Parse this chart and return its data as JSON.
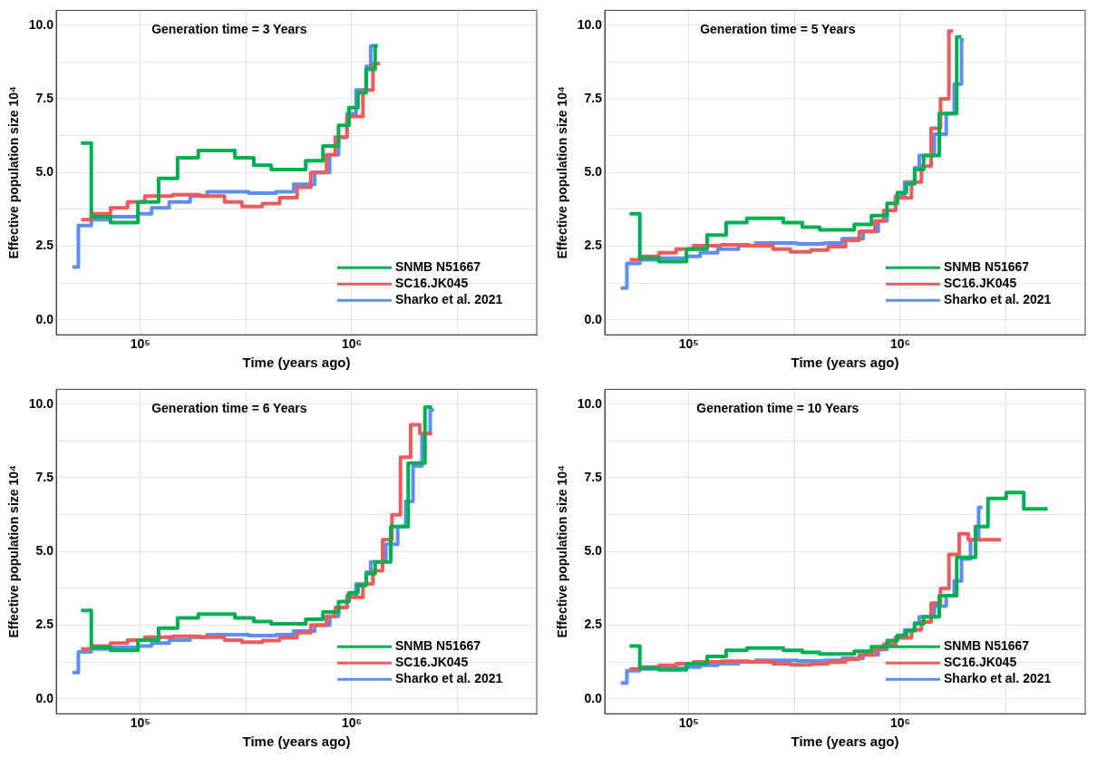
{
  "chart_data": [
    {
      "type": "step",
      "title": "Generation time = 3 Years",
      "xlabel": "Time (years ago)",
      "ylabel": "Effective population size 10⁴",
      "log": "x",
      "grid": true,
      "legend": "bottom right",
      "marker": "none",
      "xlim": [
        40000,
        7500000
      ],
      "ylim": [
        -0.5,
        10.5
      ],
      "xticks": [
        {
          "value": 100000,
          "label": "10⁵"
        },
        {
          "value": 316228,
          "label": null
        },
        {
          "value": 1000000,
          "label": "10⁶"
        },
        {
          "value": 3162278,
          "label": null
        }
      ],
      "yticks": [
        {
          "value": 0,
          "label": "0.0"
        },
        {
          "value": 1.25,
          "label": null
        },
        {
          "value": 2.5,
          "label": "2.5"
        },
        {
          "value": 3.75,
          "label": null
        },
        {
          "value": 5,
          "label": "5.0"
        },
        {
          "value": 6.25,
          "label": null
        },
        {
          "value": 7.5,
          "label": "7.5"
        },
        {
          "value": 8.75,
          "label": null
        },
        {
          "value": 10,
          "label": "10.0"
        }
      ],
      "series": [
        {
          "name": "SNMB N51667",
          "color": "#00b050",
          "x": [
            52400,
            58600,
            72200,
            97400,
            122000,
            150000,
            188000,
            280000,
            344000,
            416000,
            606000,
            731000,
            866000,
            970000,
            1070000,
            1170000,
            1290000,
            1330000
          ],
          "values": [
            6.0,
            3.5,
            3.3,
            4.0,
            4.8,
            5.5,
            5.75,
            5.5,
            5.25,
            5.1,
            5.4,
            5.9,
            6.6,
            7.2,
            7.7,
            8.5,
            9.3,
            9.3
          ]
        },
        {
          "name": "SC16.JK045",
          "color": "#f05a5a",
          "x": [
            52400,
            58600,
            72200,
            87000,
            105000,
            142000,
            192000,
            250000,
            302000,
            378000,
            456000,
            551000,
            640000,
            760000,
            835000,
            950000,
            1130000,
            1260000,
            1360000
          ],
          "values": [
            3.4,
            3.6,
            3.8,
            4.0,
            4.2,
            4.25,
            4.2,
            4.0,
            3.85,
            3.95,
            4.15,
            4.5,
            5.0,
            5.6,
            6.2,
            6.9,
            7.8,
            8.7,
            8.7
          ]
        },
        {
          "name": "Sharko et al. 2021",
          "color": "#5b8ff0",
          "x": [
            47600,
            50900,
            58600,
            72200,
            97400,
            113000,
            137000,
            172000,
            207000,
            259000,
            325000,
            438000,
            531000,
            668000,
            787000,
            866000,
            950000,
            1048000,
            1170000,
            1230000,
            1290000
          ],
          "values": [
            1.8,
            3.2,
            3.4,
            3.5,
            3.6,
            3.8,
            4.0,
            4.2,
            4.35,
            4.35,
            4.3,
            4.35,
            4.6,
            5.0,
            5.6,
            6.2,
            7.0,
            7.8,
            8.6,
            9.3,
            9.3
          ]
        }
      ]
    },
    {
      "type": "step",
      "title": "Generation time = 5 Years",
      "xlabel": "Time (years ago)",
      "ylabel": "Effective population size 10⁴",
      "log": "x",
      "grid": true,
      "legend": "bottom right",
      "marker": "none",
      "xlim": [
        40000,
        7500000
      ],
      "ylim": [
        -0.5,
        10.5
      ],
      "xticks": [
        {
          "value": 100000,
          "label": "10⁵"
        },
        {
          "value": 316228,
          "label": null
        },
        {
          "value": 1000000,
          "label": "10⁶"
        },
        {
          "value": 3162278,
          "label": null
        }
      ],
      "yticks": [
        {
          "value": 0,
          "label": "0.0"
        },
        {
          "value": 1.25,
          "label": null
        },
        {
          "value": 2.5,
          "label": "2.5"
        },
        {
          "value": 3.75,
          "label": null
        },
        {
          "value": 5,
          "label": "5.0"
        },
        {
          "value": 6.25,
          "label": null
        },
        {
          "value": 7.5,
          "label": "7.5"
        },
        {
          "value": 8.75,
          "label": null
        },
        {
          "value": 10,
          "label": "10.0"
        }
      ],
      "series": [
        {
          "name": "SNMB N51667",
          "color": "#00b050",
          "x": [
            52400,
            58600,
            72200,
            97400,
            122000,
            150000,
            188000,
            280000,
            344000,
            416000,
            606000,
            731000,
            866000,
            970000,
            1070000,
            1170000,
            1290000,
            1530000,
            1850000,
            1950000
          ],
          "values": [
            3.6,
            2.1,
            1.98,
            2.4,
            2.88,
            3.3,
            3.45,
            3.3,
            3.15,
            3.06,
            3.24,
            3.54,
            3.96,
            4.32,
            4.62,
            5.1,
            5.58,
            7.0,
            9.6,
            9.6
          ]
        },
        {
          "name": "SC16.JK045",
          "color": "#f05a5a",
          "x": [
            52400,
            58600,
            72200,
            87000,
            105000,
            142000,
            192000,
            250000,
            302000,
            378000,
            456000,
            551000,
            640000,
            760000,
            835000,
            950000,
            1130000,
            1260000,
            1400000,
            1550000,
            1700000,
            1780000
          ],
          "values": [
            2.04,
            2.16,
            2.28,
            2.4,
            2.52,
            2.55,
            2.52,
            2.4,
            2.31,
            2.37,
            2.49,
            2.7,
            3.0,
            3.36,
            3.72,
            4.14,
            4.68,
            5.22,
            6.5,
            7.5,
            9.8,
            9.8
          ]
        },
        {
          "name": "Sharko et al. 2021",
          "color": "#5b8ff0",
          "x": [
            47600,
            50900,
            58600,
            72200,
            97400,
            113000,
            137000,
            172000,
            207000,
            259000,
            325000,
            438000,
            531000,
            668000,
            787000,
            866000,
            950000,
            1048000,
            1170000,
            1230000,
            1450000,
            1650000,
            1800000,
            1950000,
            2000000
          ],
          "values": [
            1.08,
            1.92,
            2.04,
            2.1,
            2.16,
            2.28,
            2.4,
            2.52,
            2.61,
            2.61,
            2.58,
            2.61,
            2.76,
            3.0,
            3.36,
            3.72,
            4.2,
            4.68,
            5.16,
            5.58,
            6.3,
            7.0,
            8.0,
            9.5,
            9.5
          ]
        }
      ]
    },
    {
      "type": "step",
      "title": "Generation time = 6 Years",
      "xlabel": "Time (years ago)",
      "ylabel": "Effective population size 10⁴",
      "log": "x",
      "grid": true,
      "legend": "bottom right",
      "marker": "none",
      "xlim": [
        40000,
        7500000
      ],
      "ylim": [
        -0.5,
        10.5
      ],
      "xticks": [
        {
          "value": 100000,
          "label": "10⁵"
        },
        {
          "value": 316228,
          "label": null
        },
        {
          "value": 1000000,
          "label": "10⁶"
        },
        {
          "value": 3162278,
          "label": null
        }
      ],
      "yticks": [
        {
          "value": 0,
          "label": "0.0"
        },
        {
          "value": 1.25,
          "label": null
        },
        {
          "value": 2.5,
          "label": "2.5"
        },
        {
          "value": 3.75,
          "label": null
        },
        {
          "value": 5,
          "label": "5.0"
        },
        {
          "value": 6.25,
          "label": null
        },
        {
          "value": 7.5,
          "label": "7.5"
        },
        {
          "value": 8.75,
          "label": null
        },
        {
          "value": 10,
          "label": "10.0"
        }
      ],
      "series": [
        {
          "name": "SNMB N51667",
          "color": "#00b050",
          "x": [
            52400,
            58600,
            72200,
            97400,
            122000,
            150000,
            188000,
            280000,
            344000,
            416000,
            606000,
            731000,
            866000,
            970000,
            1070000,
            1170000,
            1290000,
            1530000,
            1850000,
            2220000,
            2400000
          ],
          "values": [
            3.0,
            1.75,
            1.65,
            2.0,
            2.4,
            2.75,
            2.88,
            2.75,
            2.63,
            2.55,
            2.7,
            2.95,
            3.3,
            3.6,
            3.85,
            4.25,
            4.65,
            5.85,
            8.0,
            9.9,
            9.9
          ]
        },
        {
          "name": "SC16.JK045",
          "color": "#f05a5a",
          "x": [
            52400,
            58600,
            72200,
            87000,
            105000,
            142000,
            192000,
            250000,
            302000,
            378000,
            456000,
            551000,
            640000,
            760000,
            835000,
            950000,
            1130000,
            1260000,
            1400000,
            1550000,
            1700000,
            1900000,
            2100000,
            2400000
          ],
          "values": [
            1.7,
            1.8,
            1.9,
            2.0,
            2.1,
            2.13,
            2.1,
            2.0,
            1.93,
            1.98,
            2.08,
            2.25,
            2.5,
            2.8,
            3.1,
            3.45,
            3.9,
            4.35,
            5.4,
            6.25,
            8.2,
            9.3,
            9.0,
            9.0
          ]
        },
        {
          "name": "Sharko et al. 2021",
          "color": "#5b8ff0",
          "x": [
            47600,
            50900,
            58600,
            72200,
            97400,
            113000,
            137000,
            172000,
            207000,
            259000,
            325000,
            438000,
            531000,
            668000,
            787000,
            866000,
            950000,
            1048000,
            1170000,
            1230000,
            1450000,
            1650000,
            1800000,
            1950000,
            2150000,
            2350000,
            2450000
          ],
          "values": [
            0.9,
            1.6,
            1.7,
            1.75,
            1.8,
            1.9,
            2.0,
            2.1,
            2.18,
            2.18,
            2.15,
            2.18,
            2.3,
            2.5,
            2.8,
            3.1,
            3.5,
            3.9,
            4.3,
            4.65,
            5.25,
            5.85,
            6.7,
            7.9,
            9.0,
            9.8,
            9.8
          ]
        }
      ]
    },
    {
      "type": "step",
      "title": "Generation time = 10 Years",
      "xlabel": "Time (years ago)",
      "ylabel": "Effective population size 10⁴",
      "log": "x",
      "grid": true,
      "legend": "bottom right",
      "marker": "none",
      "xlim": [
        40000,
        7500000
      ],
      "ylim": [
        -0.5,
        10.5
      ],
      "xticks": [
        {
          "value": 100000,
          "label": "10⁵"
        },
        {
          "value": 316228,
          "label": null
        },
        {
          "value": 1000000,
          "label": "10⁶"
        },
        {
          "value": 3162278,
          "label": null
        }
      ],
      "yticks": [
        {
          "value": 0,
          "label": "0.0"
        },
        {
          "value": 1.25,
          "label": null
        },
        {
          "value": 2.5,
          "label": "2.5"
        },
        {
          "value": 3.75,
          "label": null
        },
        {
          "value": 5,
          "label": "5.0"
        },
        {
          "value": 6.25,
          "label": null
        },
        {
          "value": 7.5,
          "label": "7.5"
        },
        {
          "value": 8.75,
          "label": null
        },
        {
          "value": 10,
          "label": "10.0"
        }
      ],
      "series": [
        {
          "name": "SNMB N51667",
          "color": "#00b050",
          "x": [
            52400,
            58600,
            72200,
            97400,
            122000,
            150000,
            188000,
            280000,
            344000,
            416000,
            606000,
            731000,
            866000,
            970000,
            1070000,
            1170000,
            1290000,
            1530000,
            1850000,
            2270000,
            2600000,
            3170000,
            3840000,
            4980000
          ],
          "values": [
            1.8,
            1.05,
            0.99,
            1.2,
            1.44,
            1.65,
            1.73,
            1.65,
            1.58,
            1.53,
            1.62,
            1.77,
            1.98,
            2.16,
            2.31,
            2.55,
            2.79,
            3.5,
            4.8,
            5.85,
            6.8,
            7.0,
            6.45,
            6.45
          ]
        },
        {
          "name": "SC16.JK045",
          "color": "#f05a5a",
          "x": [
            52400,
            58600,
            72200,
            87000,
            105000,
            142000,
            192000,
            250000,
            302000,
            378000,
            456000,
            551000,
            640000,
            760000,
            835000,
            950000,
            1130000,
            1260000,
            1400000,
            1550000,
            1700000,
            1900000,
            2100000,
            2400000,
            3000000
          ],
          "values": [
            1.02,
            1.08,
            1.14,
            1.2,
            1.26,
            1.28,
            1.26,
            1.2,
            1.16,
            1.19,
            1.25,
            1.35,
            1.5,
            1.68,
            1.86,
            2.07,
            2.34,
            2.61,
            3.25,
            3.75,
            4.9,
            5.6,
            5.4,
            5.4,
            5.4
          ]
        },
        {
          "name": "Sharko et al. 2021",
          "color": "#5b8ff0",
          "x": [
            47600,
            50900,
            58600,
            72200,
            97400,
            113000,
            137000,
            172000,
            207000,
            259000,
            325000,
            438000,
            531000,
            668000,
            787000,
            866000,
            950000,
            1048000,
            1170000,
            1230000,
            1450000,
            1650000,
            1800000,
            1950000,
            2150000,
            2350000,
            2450000
          ],
          "values": [
            0.54,
            0.96,
            1.02,
            1.05,
            1.08,
            1.14,
            1.2,
            1.26,
            1.31,
            1.31,
            1.29,
            1.31,
            1.38,
            1.5,
            1.68,
            1.86,
            2.1,
            2.34,
            2.58,
            2.79,
            3.15,
            3.5,
            4.0,
            4.75,
            5.4,
            6.5,
            6.5
          ]
        }
      ]
    }
  ]
}
